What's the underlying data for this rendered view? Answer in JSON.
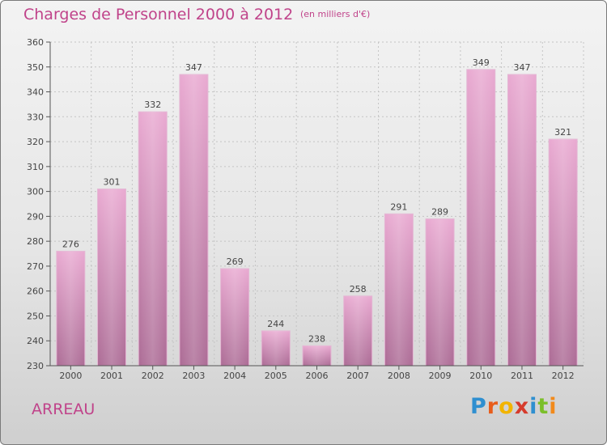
{
  "header": {
    "title": "Charges de Personnel 2000 à 2012",
    "subtitle": "(en milliers d'€)"
  },
  "footer": {
    "town": "ARREAU",
    "logo_letters": [
      {
        "char": "P",
        "color": "#2f8fd0"
      },
      {
        "char": "r",
        "color": "#e85d1b"
      },
      {
        "char": "o",
        "color": "#f2b400"
      },
      {
        "char": "x",
        "color": "#d63b2c"
      },
      {
        "char": "i",
        "color": "#2f8fd0"
      },
      {
        "char": "t",
        "color": "#7bbf2a"
      },
      {
        "char": "i",
        "color": "#f28a1b"
      }
    ]
  },
  "colors": {
    "accent": "#c0438a",
    "bar_top": "#e9a9d1",
    "bar_bottom": "#ac6b95"
  },
  "chart_data": {
    "type": "bar",
    "title": "Charges de Personnel 2000 à 2012",
    "subtitle": "(en milliers d'€)",
    "categories": [
      "2000",
      "2001",
      "2002",
      "2003",
      "2004",
      "2005",
      "2006",
      "2007",
      "2008",
      "2009",
      "2010",
      "2011",
      "2012"
    ],
    "values": [
      276,
      301,
      332,
      347,
      269,
      244,
      238,
      258,
      291,
      289,
      349,
      347,
      321
    ],
    "ylim": [
      230,
      360
    ],
    "yticks": [
      230,
      240,
      250,
      260,
      270,
      280,
      290,
      300,
      310,
      320,
      330,
      340,
      350,
      360
    ],
    "grid": true,
    "data_labels": true
  }
}
